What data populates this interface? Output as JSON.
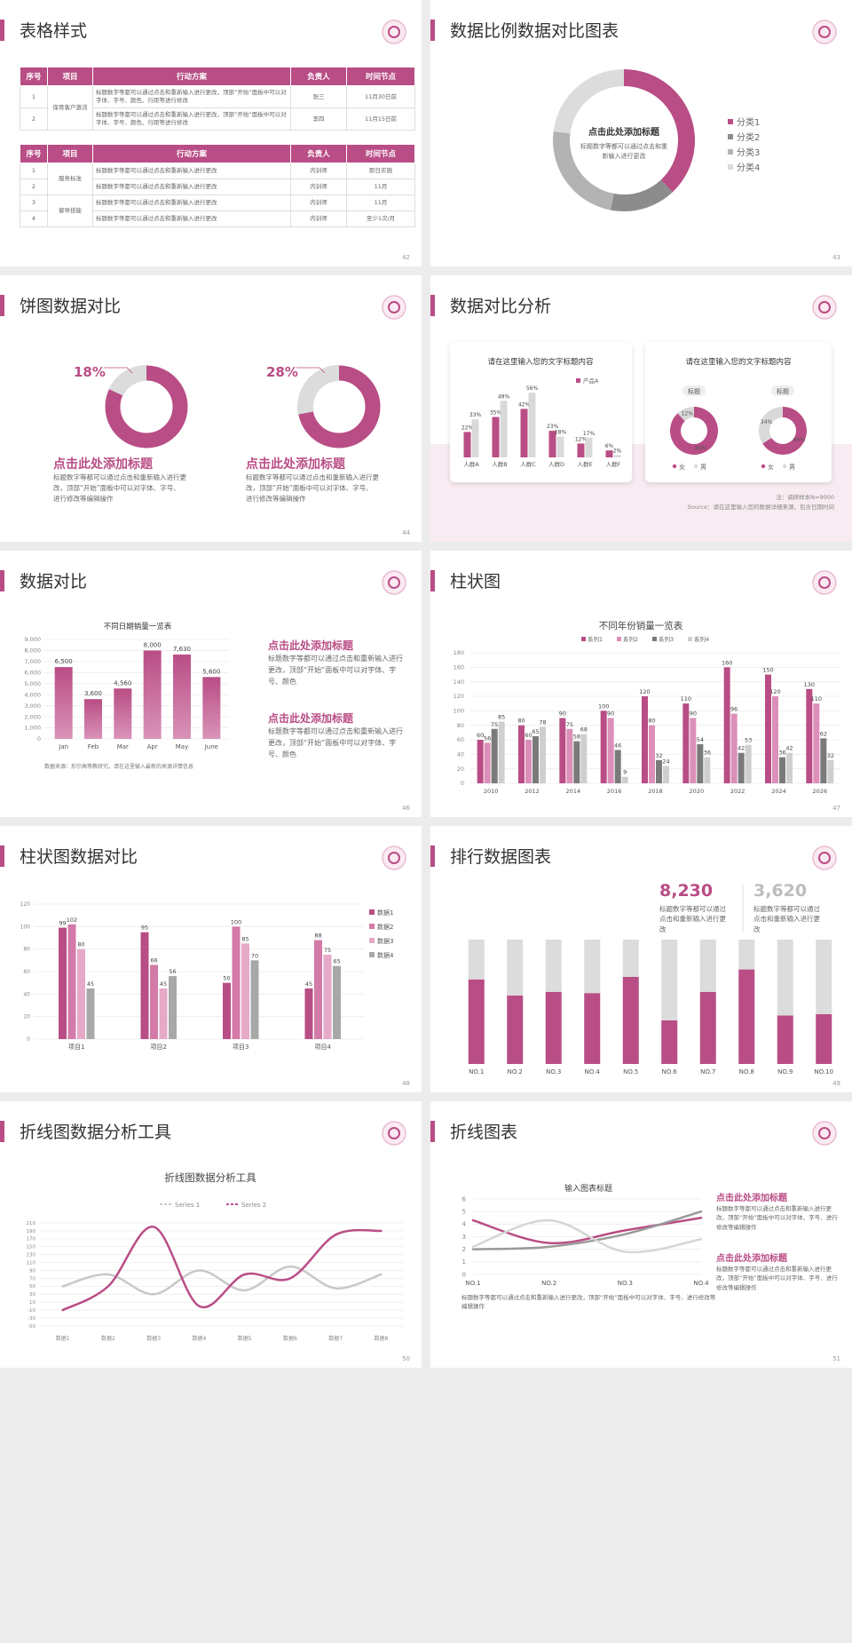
{
  "slides": [
    {
      "title": "表格样式",
      "page": 42,
      "tables": [
        {
          "header": [
            "序号",
            "项目",
            "行动方案",
            "负责人",
            "时间节点"
          ],
          "groups": [
            {
              "item": "保育客户激活",
              "rows": [
                [
                  "1",
                  "标题数字等都可以通过点击和重新输入进行更改，顶部“开始”面板中可以对字体、字号、颜色、行距等进行修改",
                  "张三",
                  "11月30日前"
                ],
                [
                  "2",
                  "标题数字等都可以通过点击和重新输入进行更改，顶部“开始”面板中可以对字体、字号、颜色、行距等进行修改",
                  "李四",
                  "11月15日前"
                ]
              ]
            }
          ]
        },
        {
          "header": [
            "序号",
            "项目",
            "行动方案",
            "负责人",
            "时间节点"
          ],
          "groups": [
            {
              "item": "服务标准",
              "rows": [
                [
                  "1",
                  "标题数字等都可以通过点击和重新输入进行更改",
                  "内训师",
                  "即日实施"
                ],
                [
                  "2",
                  "标题数字等都可以通过点击和重新输入进行更改",
                  "内训师",
                  "11月"
                ]
              ]
            },
            {
              "item": "督导技能",
              "rows": [
                [
                  "3",
                  "标题数字等都可以通过点击和重新输入进行更改",
                  "内训师",
                  "11月"
                ],
                [
                  "4",
                  "标题数字等都可以通过点击和重新输入进行更改",
                  "内训师",
                  "至少1次/月"
                ]
              ]
            }
          ]
        }
      ]
    },
    {
      "title": "数据比例数据对比图表",
      "page": 43,
      "chart": {
        "type": "donut",
        "heading": "点击此处添加标题",
        "text": "标题数字等都可以通过点击和重新输入进行更改",
        "categories": [
          "分类1",
          "分类2",
          "分类3",
          "分类4"
        ],
        "values": [
          38,
          15,
          24,
          23
        ],
        "colors": [
          "#b94d85",
          "#8c8c8c",
          "#b3b3b3",
          "#dcdcdc"
        ]
      }
    },
    {
      "title": "饼图数据对比",
      "page": 44,
      "chart": {
        "type": "ring",
        "values": [
          18,
          28
        ],
        "value_labels": [
          "18%",
          "28%"
        ],
        "color": "#b94d85",
        "rest_color": "#dcdcdc"
      },
      "blocks": [
        {
          "heading": "点击此处添加标题",
          "text": "标题数字等都可以通过点击和重新输入进行更改，顶部“开始”面板中可以对字体、字号、进行修改等编辑操作"
        },
        {
          "heading": "点击此处添加标题",
          "text": "标题数字等都可以通过点击和重新输入进行更改，顶部“开始”面板中可以对字体、字号、进行修改等编辑操作"
        }
      ]
    },
    {
      "title": "数据对比分析",
      "page": 45,
      "cards": [
        {
          "title": "请在这里输入您的文字标题内容",
          "chart": {
            "type": "bar",
            "categories": [
              "人群A",
              "人群B",
              "人群C",
              "人群D",
              "人群E",
              "人群F"
            ],
            "series": [
              {
                "name": "产品A",
                "color": "#b94d85",
                "values": [
                  22,
                  35,
                  42,
                  23,
                  12,
                  6
                ],
                "value_labels": [
                  "22%",
                  "35%",
                  "42%",
                  "23%",
                  "12%",
                  "6%"
                ]
              },
              {
                "color": "#d9d9d9",
                "values": [
                  33,
                  49,
                  56,
                  18,
                  17,
                  2
                ],
                "value_labels": [
                  "33%",
                  "49%",
                  "56%",
                  "18%",
                  "17%",
                  "2%"
                ]
              }
            ]
          }
        },
        {
          "title": "请在这里输入您的文字标题内容",
          "chart": {
            "type": "ring-pair",
            "tags": [
              "标题",
              "标题"
            ],
            "series": [
              {
                "name": "女",
                "color": "#b94d85",
                "values": [
                  88,
                  66
                ],
                "value_labels": [
                  "88%",
                  "66%"
                ]
              },
              {
                "name": "男",
                "color": "#d9d9d9",
                "values": [
                  12,
                  34
                ],
                "value_labels": [
                  "12%",
                  "34%"
                ]
              }
            ]
          }
        }
      ],
      "note": "注：调研样本N=9000",
      "source": "Source：请在这里输入您的数据详细来源，包含日期时间"
    },
    {
      "title": "数据对比",
      "page": 46,
      "chart": {
        "type": "bar",
        "title": "不同日期销量一览表",
        "categories": [
          "Jan",
          "Feb",
          "Mar",
          "Apr",
          "May",
          "June"
        ],
        "values": [
          6500,
          3600,
          4560,
          8000,
          7630,
          5600
        ],
        "value_labels": [
          "6,500",
          "3,600",
          "4,560",
          "8,000",
          "7,630",
          "5,600"
        ],
        "color": "#b94d85",
        "ylim": [
          0,
          9000
        ],
        "yticks": [
          0,
          {
            "value": 1000,
            "label": "1,000"
          },
          {
            "value": 2000,
            "label": "2,000"
          },
          {
            "value": 3000,
            "label": "3,000"
          },
          {
            "value": 4000,
            "label": "4,000"
          },
          {
            "value": 5000,
            "label": "5,000"
          },
          {
            "value": 6000,
            "label": "6,000"
          },
          {
            "value": 7000,
            "label": "7,000"
          },
          {
            "value": 8000,
            "label": "8,000"
          },
          {
            "value": 9000,
            "label": "9,000"
          }
        ]
      },
      "source": "数据来源：形尔高等教研究，请在这里输入最新的来源详情信息",
      "blocks": [
        {
          "heading": "点击此处添加标题",
          "text": "标题数字等都可以通过点击和重新输入进行更改，顶部“开始”面板中可以对字体、字号、颜色"
        },
        {
          "heading": "点击此处添加标题",
          "text": "标题数字等都可以通过点击和重新输入进行更改，顶部“开始”面板中可以对字体、字号、颜色"
        }
      ]
    },
    {
      "title": "柱状图",
      "page": 47,
      "chart": {
        "type": "grouped-bar",
        "title": "不同年份销量一览表",
        "categories": [
          "2010",
          "2012",
          "2014",
          "2016",
          "2018",
          "2020",
          "2022",
          "2024",
          "2026"
        ],
        "series": [
          {
            "name": "系列1",
            "color": "#b94d85",
            "values": [
              60,
              80,
              90,
              100,
              120,
              110,
              160,
              150,
              130
            ]
          },
          {
            "name": "系列2",
            "color": "#dc8fb8",
            "values": [
              56,
              60,
              75,
              90,
              80,
              90,
              96,
              120,
              110
            ]
          },
          {
            "name": "系列3",
            "color": "#7a7a7a",
            "values": [
              75,
              65,
              58,
              46,
              32,
              54,
              42,
              36,
              62
            ]
          },
          {
            "name": "系列4",
            "color": "#cfcfcf",
            "values": [
              85,
              78,
              68,
              9,
              24,
              36,
              53,
              42,
              32
            ]
          }
        ],
        "ylim": [
          0,
          180
        ],
        "yticks": [
          0,
          20,
          40,
          60,
          80,
          100,
          120,
          140,
          160,
          180
        ],
        "legend": "top"
      }
    },
    {
      "title": "柱状图数据对比",
      "page": 48,
      "chart": {
        "type": "grouped-bar",
        "categories": [
          "项目1",
          "项目2",
          "项目3",
          "项目4"
        ],
        "series": [
          {
            "name": "数据1",
            "color": "#b94d85",
            "values": [
              99,
              95,
              50,
              45
            ]
          },
          {
            "name": "数据2",
            "color": "#d47aa8",
            "values": [
              102,
              66,
              100,
              88
            ]
          },
          {
            "name": "数据3",
            "color": "#e6a9c8",
            "values": [
              80,
              45,
              85,
              75
            ]
          },
          {
            "name": "数据4",
            "color": "#a8a8a8",
            "values": [
              45,
              56,
              70,
              65
            ]
          }
        ],
        "ylim": [
          0,
          120
        ],
        "yticks": [
          0,
          20,
          40,
          60,
          80,
          100,
          120
        ],
        "legend": "right"
      }
    },
    {
      "title": "排行数据图表",
      "page": 49,
      "stats": [
        {
          "value": "8,230",
          "color": "#b94d85",
          "text": "标题数字等都可以通过点击和重新输入进行更改"
        },
        {
          "value": "3,620",
          "color": "#bdbdbd",
          "text": "标题数字等都可以通过点击和重新输入进行更改"
        }
      ],
      "chart": {
        "type": "stacked-bar",
        "categories": [
          "NO.1",
          "NO.2",
          "NO.3",
          "NO.4",
          "NO.5",
          "NO.6",
          "NO.7",
          "NO.8",
          "NO.9",
          "NO.10"
        ],
        "series": [
          {
            "color": "#b94d85",
            "values": [
              68,
              55,
              58,
              57,
              70,
              35,
              58,
              76,
              39,
              40
            ]
          },
          {
            "color": "#dcdcdc",
            "values": [
              32,
              45,
              42,
              43,
              30,
              65,
              42,
              24,
              61,
              60
            ]
          }
        ]
      }
    },
    {
      "title": "折线图数据分析工具",
      "page": 50,
      "chart": {
        "type": "line",
        "title": "折线图数据分析工具",
        "categories": [
          "数据1",
          "数据2",
          "数据3",
          "数据4",
          "数据5",
          "数据6",
          "数据7",
          "数据8"
        ],
        "series": [
          {
            "name": "Series 1",
            "color": "#c8c8c8",
            "values": [
              50,
              80,
              30,
              90,
              40,
              100,
              45,
              80
            ]
          },
          {
            "name": "Series 2",
            "color": "#b94d85",
            "values": [
              -10,
              50,
              200,
              0,
              80,
              70,
              180,
              190
            ]
          }
        ],
        "ylim": [
          -50,
          210
        ],
        "yticks": [
          -50,
          -30,
          -10,
          10,
          30,
          50,
          70,
          90,
          110,
          130,
          150,
          170,
          190,
          210
        ],
        "grid": true
      }
    },
    {
      "title": "折线图表",
      "page": 51,
      "chart": {
        "type": "line",
        "title": "输入图表标题",
        "categories": [
          "NO.1",
          "NO.2",
          "NO.3",
          "NO.4"
        ],
        "series": [
          {
            "color": "#b94d85",
            "values": [
              4.3,
              2.5,
              3.5,
              4.5
            ]
          },
          {
            "color": "#9a9a9a",
            "values": [
              2.0,
              2.2,
              3.2,
              5.0
            ]
          },
          {
            "color": "#d6d6d6",
            "values": [
              2.2,
              4.3,
              1.8,
              2.8
            ]
          }
        ],
        "ylim": [
          0,
          6
        ],
        "yticks": [
          0,
          1,
          2,
          3,
          4,
          5,
          6
        ],
        "grid": true
      },
      "note": "标题数字等都可以通过点击和重新输入进行更改，顶部“开始”面板中可以对字体、字号、进行修改等编辑操作",
      "blocks": [
        {
          "heading": "点击此处添加标题",
          "text": "标题数字等都可以通过点击和重新输入进行更改，顶部“开始”面板中可以对字体、字号、进行修改等编辑操作"
        },
        {
          "heading": "点击此处添加标题",
          "text": "标题数字等都可以通过点击和重新输入进行更改，顶部“开始”面板中可以对字体、字号、进行修改等编辑操作"
        }
      ]
    }
  ]
}
